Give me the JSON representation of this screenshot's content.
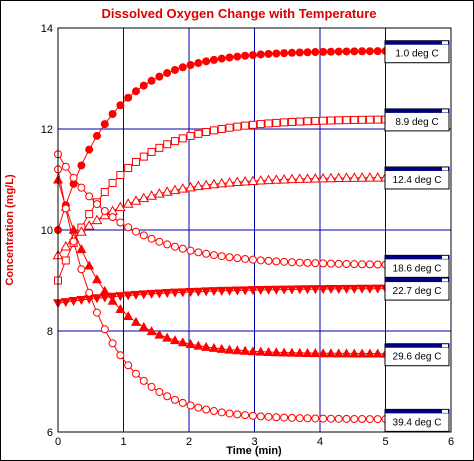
{
  "chart_data": {
    "type": "scatter",
    "title": "Dissolved Oxygen Change with Temperature",
    "xlabel": "Time (min)",
    "ylabel": "Concentration (mg/L)",
    "xlim": [
      0,
      6
    ],
    "ylim": [
      6,
      14
    ],
    "xticks": [
      "0",
      "1",
      "2",
      "3",
      "4",
      "5",
      "6"
    ],
    "yticks": [
      "6",
      "8",
      "10",
      "12",
      "14"
    ],
    "grid": true,
    "colors": {
      "series": "#ff0000",
      "grid": "#0000aa",
      "title": "#e00000",
      "tag_bar": "#000080"
    },
    "series": [
      {
        "name": "1.0 deg C",
        "marker": "filled-circle",
        "start": 10.0,
        "end": 13.55,
        "tau": 0.8
      },
      {
        "name": "8.9 deg C",
        "marker": "open-square",
        "start": 9.0,
        "end": 12.2,
        "tau": 0.9
      },
      {
        "name": "12.4 deg C",
        "marker": "open-triangle",
        "start": 9.5,
        "end": 11.05,
        "tau": 1.0
      },
      {
        "name": "18.6 deg C",
        "marker": "open-circle",
        "start": 11.5,
        "end": 9.3,
        "tau": 1.0
      },
      {
        "name": "22.7 deg C",
        "marker": "filled-triangle-down",
        "start": 8.55,
        "end": 8.85,
        "tau": 1.5
      },
      {
        "name": "29.6 deg C",
        "marker": "filled-triangle",
        "start": 11.0,
        "end": 7.55,
        "tau": 0.7
      },
      {
        "name": "39.4 deg C",
        "marker": "open-circle",
        "start": 11.2,
        "end": 6.25,
        "tau": 0.7
      }
    ]
  }
}
